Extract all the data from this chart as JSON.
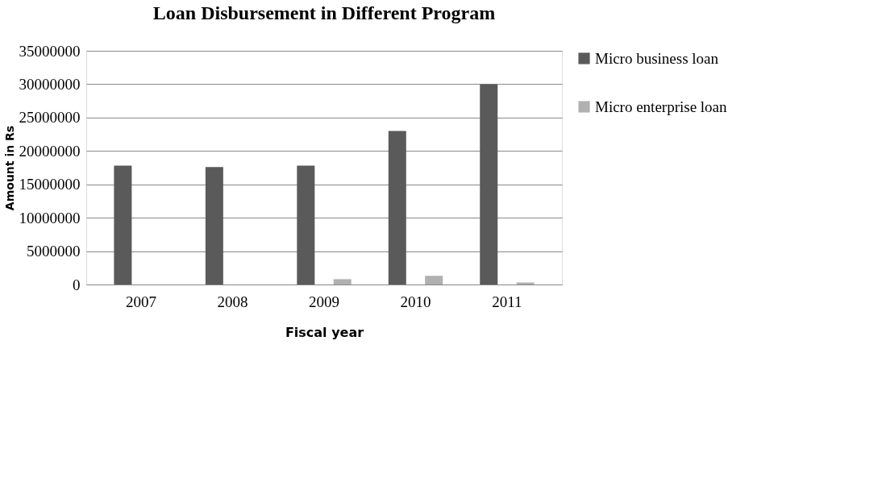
{
  "chart_data": {
    "type": "bar",
    "title": "Loan Disbursement in Different Program",
    "xlabel": "Fiscal year",
    "ylabel": "Amount in Rs",
    "categories": [
      "2007",
      "2008",
      "2009",
      "2010",
      "2011"
    ],
    "series": [
      {
        "name": "Micro business loan",
        "color": "#5a5a5a",
        "values": [
          17800000,
          17600000,
          17800000,
          23000000,
          30000000
        ]
      },
      {
        "name": "Micro enterprise loan",
        "color": "#b0b0b0",
        "values": [
          0,
          0,
          800000,
          1300000,
          300000
        ]
      }
    ],
    "ylim": [
      0,
      35000000
    ],
    "yticks": [
      0,
      5000000,
      10000000,
      15000000,
      20000000,
      25000000,
      30000000,
      35000000
    ],
    "grid": "y",
    "legend": "right"
  }
}
